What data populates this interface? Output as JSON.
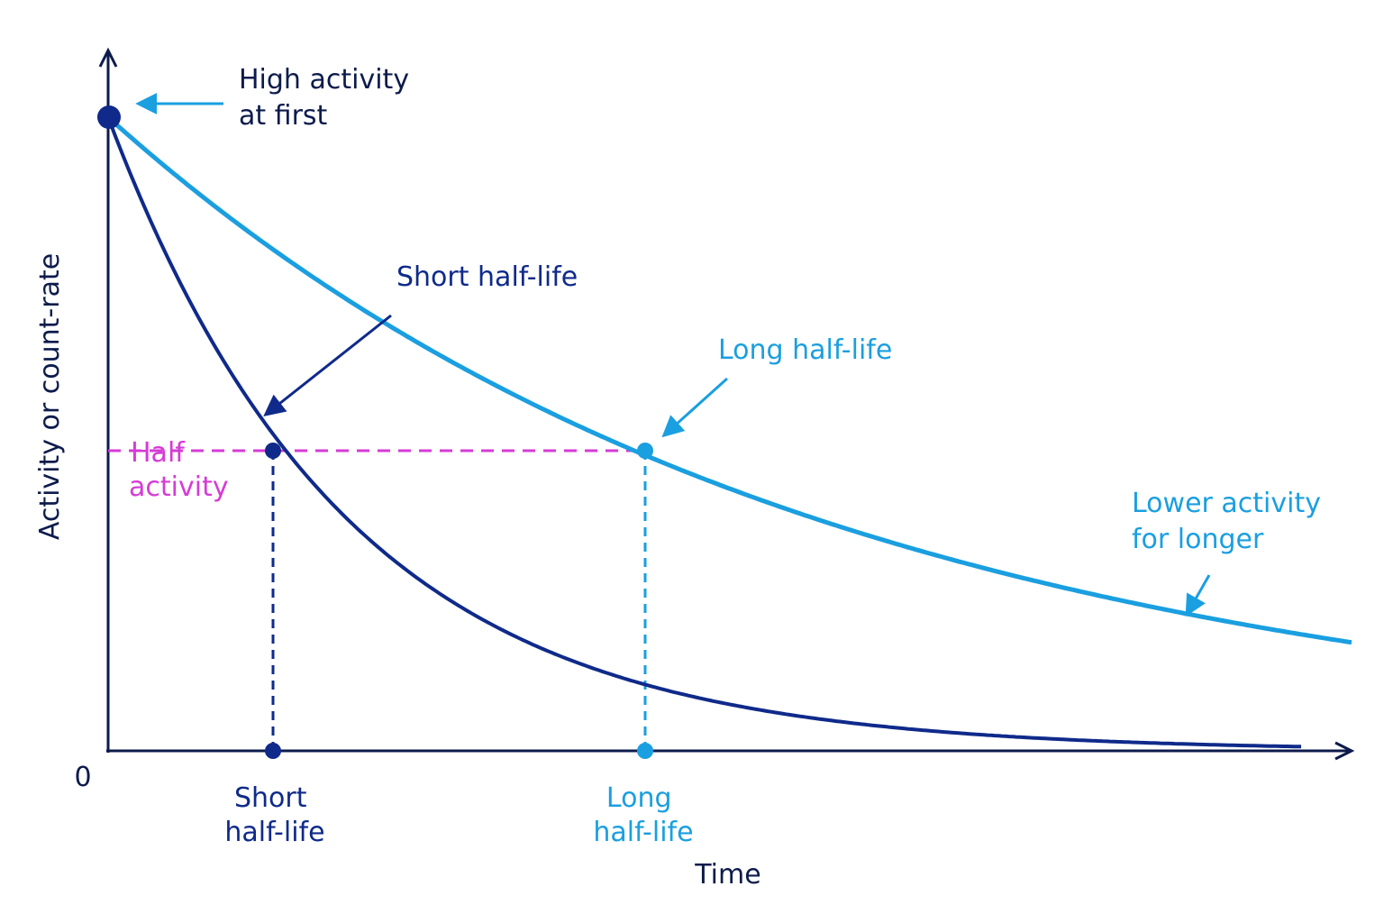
{
  "axes": {
    "y_label": "Activity or count-rate",
    "x_label": "Time",
    "origin": "0"
  },
  "annotations": {
    "high_activity": [
      "High activity",
      "at first"
    ],
    "short_half_life": "Short half-life",
    "long_half_life": "Long half-life",
    "half_activity": [
      "Half",
      "activity"
    ],
    "lower_activity": [
      "Lower activity",
      "for longer"
    ],
    "x_short": [
      "Short",
      "half-life"
    ],
    "x_long": [
      "Long",
      "half-life"
    ]
  }
}
